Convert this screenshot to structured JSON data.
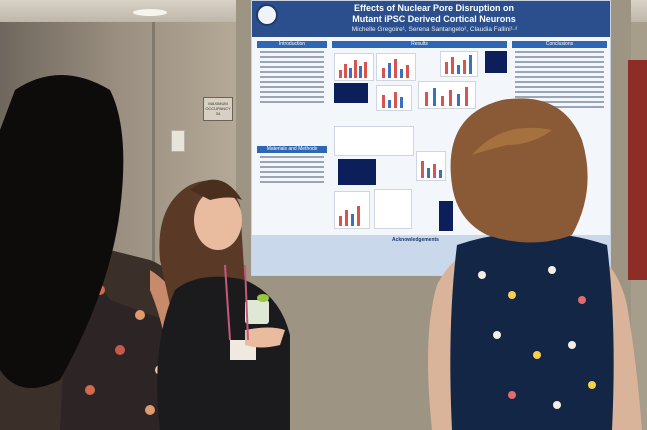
{
  "poster": {
    "title": "Effects of Nuclear Pore Disruption on",
    "title_line2": "Mutant iPSC Derived Cortical Neurons",
    "authors": "Michelle Gregoire¹, Serena Santangelo², Claudia Fallini¹·²",
    "sections": {
      "introduction": "Introduction",
      "results": "Results",
      "conclusions": "Conclusions",
      "materials": "Materials and Methods",
      "acknowledgements": "Acknowledgements"
    }
  },
  "room_sign": "MAXIMUM OCCUPANCY 34",
  "colors": {
    "poster_header": "#2a4f8c",
    "section_header": "#2f66b3",
    "bar_red": "#d9534f",
    "bar_blue": "#3b6fc2",
    "door_red": "#8e2d28"
  }
}
